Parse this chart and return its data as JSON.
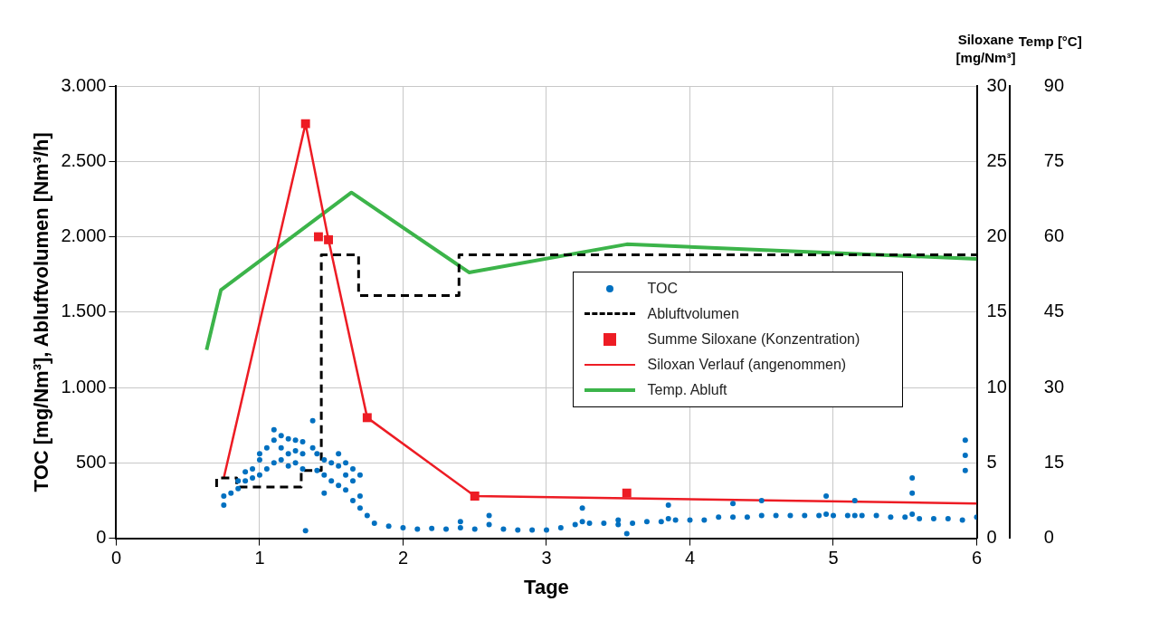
{
  "chart_data": {
    "type": "line",
    "xlabel": "Tage",
    "ylabel": "TOC [mg/Nm³], Abluftvolumen [Nm³/h]",
    "y2label": "Siloxane [mg/Nm³]",
    "y3label": "Temp [°C]",
    "xlim": [
      0,
      6
    ],
    "xticks": [
      0,
      1,
      2,
      3,
      4,
      5,
      6
    ],
    "ylim": [
      0,
      3000
    ],
    "yticks": [
      0,
      500,
      {
        "value": 1000,
        "label": "1.000"
      },
      {
        "value": 1500,
        "label": "1.500"
      },
      {
        "value": 2000,
        "label": "2.000"
      },
      {
        "value": 2500,
        "label": "2.500"
      },
      {
        "value": 3000,
        "label": "3.000"
      }
    ],
    "y2lim": [
      0,
      30
    ],
    "y2ticks": [
      0,
      5,
      10,
      15,
      20,
      25,
      30
    ],
    "y3lim": [
      0,
      90
    ],
    "y3ticks": [
      0,
      15,
      30,
      45,
      60,
      75,
      90
    ],
    "grid": true,
    "legend": "right",
    "series": [
      {
        "name": "TOC",
        "type": "scatter",
        "marker": "circle",
        "color": "#0070c0",
        "x": [
          0.75,
          0.75,
          0.8,
          0.85,
          0.85,
          0.9,
          0.9,
          0.95,
          0.95,
          1.0,
          1.0,
          1.0,
          1.05,
          1.05,
          1.1,
          1.1,
          1.1,
          1.15,
          1.15,
          1.15,
          1.2,
          1.2,
          1.2,
          1.25,
          1.25,
          1.25,
          1.3,
          1.3,
          1.3,
          1.32,
          1.37,
          1.37,
          1.4,
          1.4,
          1.45,
          1.45,
          1.45,
          1.5,
          1.5,
          1.55,
          1.55,
          1.55,
          1.6,
          1.6,
          1.6,
          1.65,
          1.65,
          1.65,
          1.7,
          1.7,
          1.7,
          1.75,
          1.8,
          1.9,
          2.0,
          2.1,
          2.2,
          2.3,
          2.4,
          2.4,
          2.5,
          2.6,
          2.6,
          2.7,
          2.8,
          2.9,
          3.0,
          3.1,
          3.2,
          3.25,
          3.25,
          3.3,
          3.4,
          3.5,
          3.5,
          3.56,
          3.6,
          3.7,
          3.8,
          3.85,
          3.85,
          3.9,
          4.0,
          4.1,
          4.2,
          4.3,
          4.3,
          4.4,
          4.5,
          4.5,
          4.6,
          4.7,
          4.8,
          4.9,
          4.95,
          4.95,
          5.0,
          5.1,
          5.15,
          5.15,
          5.2,
          5.3,
          5.4,
          5.5,
          5.55,
          5.55,
          5.55,
          5.6,
          5.7,
          5.8,
          5.9,
          5.92,
          5.92,
          5.92,
          6.0
        ],
        "values": [
          220,
          280,
          300,
          330,
          380,
          380,
          440,
          400,
          460,
          420,
          520,
          560,
          460,
          600,
          500,
          650,
          720,
          520,
          600,
          680,
          480,
          560,
          660,
          500,
          580,
          650,
          460,
          560,
          640,
          50,
          600,
          780,
          450,
          560,
          300,
          420,
          520,
          380,
          500,
          350,
          480,
          560,
          320,
          420,
          500,
          250,
          380,
          460,
          200,
          280,
          420,
          150,
          100,
          80,
          70,
          60,
          65,
          60,
          70,
          110,
          60,
          90,
          150,
          60,
          55,
          55,
          55,
          70,
          90,
          110,
          200,
          100,
          100,
          90,
          120,
          30,
          100,
          110,
          110,
          130,
          220,
          120,
          120,
          120,
          140,
          140,
          230,
          140,
          150,
          250,
          150,
          150,
          150,
          150,
          160,
          280,
          150,
          150,
          150,
          250,
          150,
          150,
          140,
          140,
          160,
          300,
          400,
          130,
          130,
          130,
          120,
          450,
          550,
          650,
          140
        ]
      },
      {
        "name": "Abluftvolumen",
        "type": "step",
        "line_style": "dashed",
        "marker": "none",
        "color": "#000000",
        "x": [
          0.7,
          0.84,
          1.29,
          1.43,
          1.69,
          2.39,
          3.45,
          6
        ],
        "values": [
          340,
          400,
          340,
          450,
          1880,
          1610,
          1880,
          1880
        ]
      },
      {
        "name": "Summe Siloxane (Konzentration)",
        "type": "scatter",
        "marker": "square",
        "axis": "y2",
        "color": "#ed1c24",
        "x": [
          1.32,
          1.41,
          1.48,
          1.75,
          2.5,
          3.56
        ],
        "values": [
          27.5,
          20,
          19.8,
          8,
          2.8,
          3.0
        ]
      },
      {
        "name": "Siloxan Verlauf (angenommen)",
        "line_style": "solid",
        "marker": "none",
        "axis": "y2",
        "color": "#ed1c24",
        "x": [
          0.75,
          1.32,
          1.48,
          1.75,
          2.5,
          6
        ],
        "values": [
          4,
          27.5,
          19.8,
          8,
          2.8,
          2.3
        ]
      },
      {
        "name": "Temp. Abluft",
        "line_style": "solid",
        "marker": "none",
        "axis": "y3",
        "color": "#3cb44a",
        "x": [
          0.63,
          0.73,
          1.64,
          2.46,
          3.56,
          6
        ],
        "values": [
          37.5,
          49.4,
          68.8,
          52.9,
          58.5,
          55.6
        ]
      }
    ]
  }
}
